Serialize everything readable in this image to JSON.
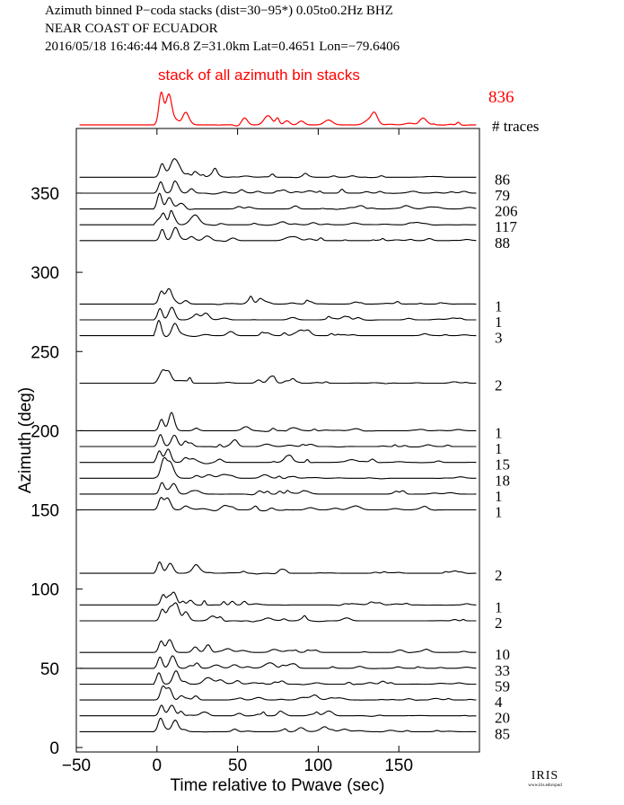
{
  "header": {
    "line1": "Azimuth binned P−coda stacks (dist=30−95*)  0.05to0.2Hz  BHZ",
    "line2": "NEAR COAST OF ECUADOR",
    "line3": "2016/05/18  16:46:44  M6.8  Z=31.0km Lat=0.4651 Lon=−79.6406"
  },
  "stack": {
    "label": "stack of all azimuth bin stacks",
    "count": "836",
    "color": "#ff0000"
  },
  "traces_label": "# traces",
  "logo": {
    "text": "IRIS",
    "url": "www.iris.edu/spud"
  },
  "chart_data": {
    "type": "line",
    "title": "Azimuth binned P−coda stacks (dist=30−95*)  0.05to0.2Hz  BHZ",
    "xlabel": "Time relative to Pwave (sec)",
    "ylabel": "Azimuth (deg)",
    "xlim": [
      -50,
      200
    ],
    "ylim": [
      0,
      380
    ],
    "xticks": [
      -50,
      0,
      50,
      100,
      150
    ],
    "yticks": [
      0,
      50,
      100,
      150,
      200,
      250,
      300,
      350
    ],
    "grid": false,
    "series": [
      {
        "azimuth": 360,
        "traces": "86"
      },
      {
        "azimuth": 350,
        "traces": "79"
      },
      {
        "azimuth": 340,
        "traces": "206"
      },
      {
        "azimuth": 330,
        "traces": "117"
      },
      {
        "azimuth": 320,
        "traces": "88"
      },
      {
        "azimuth": 280,
        "traces": "1"
      },
      {
        "azimuth": 270,
        "traces": "1"
      },
      {
        "azimuth": 260,
        "traces": "3"
      },
      {
        "azimuth": 230,
        "traces": "2"
      },
      {
        "azimuth": 200,
        "traces": "1"
      },
      {
        "azimuth": 190,
        "traces": "1"
      },
      {
        "azimuth": 180,
        "traces": "15"
      },
      {
        "azimuth": 170,
        "traces": "18"
      },
      {
        "azimuth": 160,
        "traces": "1"
      },
      {
        "azimuth": 150,
        "traces": "1"
      },
      {
        "azimuth": 110,
        "traces": "2"
      },
      {
        "azimuth": 90,
        "traces": "1"
      },
      {
        "azimuth": 80,
        "traces": "2"
      },
      {
        "azimuth": 60,
        "traces": "10"
      },
      {
        "azimuth": 50,
        "traces": "33"
      },
      {
        "azimuth": 40,
        "traces": "59"
      },
      {
        "azimuth": 30,
        "traces": "4"
      },
      {
        "azimuth": 20,
        "traces": "20"
      },
      {
        "azimuth": 10,
        "traces": "85"
      }
    ]
  }
}
